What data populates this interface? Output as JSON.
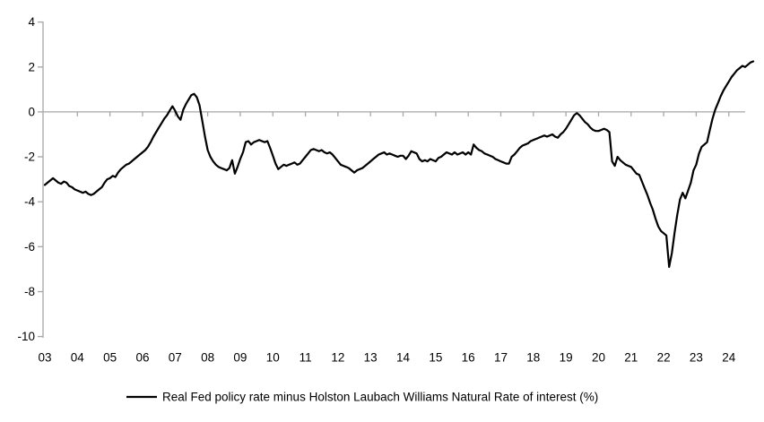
{
  "chart_data": {
    "type": "line",
    "title": "",
    "frequency": "monthly",
    "x_start": "2003-01",
    "x_end": "2024-10",
    "x_tick_labels": [
      "03",
      "04",
      "05",
      "06",
      "07",
      "08",
      "09",
      "10",
      "11",
      "12",
      "13",
      "14",
      "15",
      "16",
      "17",
      "18",
      "19",
      "20",
      "21",
      "22",
      "23",
      "24"
    ],
    "y_ticks": [
      4,
      2,
      0,
      -2,
      -4,
      -6,
      -8,
      -10
    ],
    "ylim": [
      -10,
      4
    ],
    "grid": false,
    "zero_line": true,
    "legend_position": "bottom-center",
    "axis_color": "#a6a6a6",
    "text_color": "#000000",
    "series": [
      {
        "name": "Real Fed policy rate minus Holston Laubach Williams Natural Rate of interest (%)",
        "color": "#000000",
        "values": [
          -3.25,
          -3.15,
          -3.05,
          -2.95,
          -3.05,
          -3.15,
          -3.2,
          -3.1,
          -3.15,
          -3.3,
          -3.35,
          -3.45,
          -3.5,
          -3.55,
          -3.6,
          -3.55,
          -3.65,
          -3.7,
          -3.65,
          -3.55,
          -3.45,
          -3.35,
          -3.15,
          -3.0,
          -2.95,
          -2.85,
          -2.9,
          -2.7,
          -2.55,
          -2.45,
          -2.35,
          -2.3,
          -2.2,
          -2.1,
          -2.0,
          -1.9,
          -1.8,
          -1.7,
          -1.55,
          -1.35,
          -1.1,
          -0.9,
          -0.7,
          -0.5,
          -0.3,
          -0.15,
          0.05,
          0.25,
          0.05,
          -0.2,
          -0.35,
          0.1,
          0.35,
          0.55,
          0.75,
          0.8,
          0.65,
          0.3,
          -0.4,
          -1.1,
          -1.7,
          -2.0,
          -2.2,
          -2.35,
          -2.45,
          -2.5,
          -2.55,
          -2.6,
          -2.5,
          -2.15,
          -2.75,
          -2.45,
          -2.1,
          -1.8,
          -1.35,
          -1.3,
          -1.45,
          -1.35,
          -1.3,
          -1.25,
          -1.3,
          -1.35,
          -1.3,
          -1.6,
          -1.95,
          -2.3,
          -2.55,
          -2.45,
          -2.35,
          -2.4,
          -2.35,
          -2.3,
          -2.25,
          -2.35,
          -2.3,
          -2.15,
          -2.0,
          -1.85,
          -1.7,
          -1.65,
          -1.7,
          -1.75,
          -1.7,
          -1.8,
          -1.85,
          -1.8,
          -1.9,
          -2.05,
          -2.2,
          -2.35,
          -2.4,
          -2.45,
          -2.5,
          -2.6,
          -2.7,
          -2.6,
          -2.55,
          -2.5,
          -2.4,
          -2.3,
          -2.2,
          -2.1,
          -2.0,
          -1.9,
          -1.85,
          -1.8,
          -1.9,
          -1.85,
          -1.9,
          -1.95,
          -2.0,
          -1.95,
          -1.95,
          -2.1,
          -1.95,
          -1.75,
          -1.8,
          -1.85,
          -2.1,
          -2.2,
          -2.15,
          -2.2,
          -2.1,
          -2.15,
          -2.2,
          -2.05,
          -2.0,
          -1.9,
          -1.8,
          -1.85,
          -1.9,
          -1.8,
          -1.9,
          -1.85,
          -1.8,
          -1.9,
          -1.8,
          -1.9,
          -1.45,
          -1.6,
          -1.7,
          -1.75,
          -1.85,
          -1.9,
          -1.95,
          -2.0,
          -2.1,
          -2.15,
          -2.2,
          -2.25,
          -2.3,
          -2.3,
          -2.0,
          -1.9,
          -1.75,
          -1.6,
          -1.5,
          -1.45,
          -1.4,
          -1.3,
          -1.25,
          -1.2,
          -1.15,
          -1.1,
          -1.05,
          -1.1,
          -1.05,
          -1.0,
          -1.1,
          -1.15,
          -1.0,
          -0.9,
          -0.75,
          -0.55,
          -0.35,
          -0.15,
          -0.05,
          -0.15,
          -0.3,
          -0.45,
          -0.55,
          -0.7,
          -0.8,
          -0.85,
          -0.85,
          -0.8,
          -0.75,
          -0.8,
          -0.9,
          -2.2,
          -2.4,
          -2.0,
          -2.15,
          -2.25,
          -2.35,
          -2.4,
          -2.45,
          -2.6,
          -2.75,
          -2.8,
          -3.1,
          -3.4,
          -3.7,
          -4.05,
          -4.35,
          -4.75,
          -5.1,
          -5.3,
          -5.4,
          -5.5,
          -6.9,
          -6.3,
          -5.4,
          -4.6,
          -3.9,
          -3.6,
          -3.85,
          -3.5,
          -3.15,
          -2.6,
          -2.35,
          -1.85,
          -1.55,
          -1.45,
          -1.35,
          -0.8,
          -0.3,
          0.1,
          0.4,
          0.7,
          0.95,
          1.15,
          1.35,
          1.55,
          1.7,
          1.85,
          1.95,
          2.05,
          2.0,
          2.1,
          2.2,
          2.25
        ]
      }
    ]
  }
}
